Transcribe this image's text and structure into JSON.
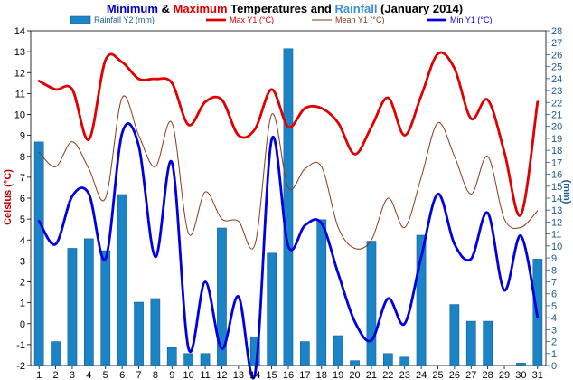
{
  "chart_data": {
    "type": "bar+line",
    "title_parts": [
      {
        "text": "Minimum",
        "color": "#0000c8"
      },
      {
        "text": " & ",
        "color": "#000000"
      },
      {
        "text": "Maximum",
        "color": "#e00000"
      },
      {
        "text": " Temperatures and ",
        "color": "#000000"
      },
      {
        "text": "Rainfall",
        "color": "#3b8fd0"
      },
      {
        "text": " (January 2014)",
        "color": "#000000"
      }
    ],
    "ylabel_left": "Celsius (°C)",
    "ylabel_right": "(mm)",
    "xlim": [
      1,
      31
    ],
    "ylim_left": [
      -2,
      14
    ],
    "ylim_right": [
      0,
      28
    ],
    "x": [
      1,
      2,
      3,
      4,
      5,
      6,
      7,
      8,
      9,
      10,
      11,
      12,
      13,
      14,
      15,
      16,
      17,
      18,
      19,
      20,
      21,
      22,
      23,
      24,
      25,
      26,
      27,
      28,
      29,
      30,
      31
    ],
    "series": [
      {
        "name": "Rainfall Y2 (mm)",
        "axis": "right",
        "kind": "bar",
        "color": "#1a84c7",
        "stroke": "#1a5b8c",
        "values": [
          18.7,
          2,
          9.8,
          10.6,
          9.6,
          14.3,
          5.3,
          5.6,
          1.5,
          1,
          1,
          11.5,
          0,
          2.4,
          9.4,
          26.5,
          2,
          12.2,
          2.5,
          0.4,
          10.4,
          1,
          0.7,
          10.9,
          0,
          5.1,
          3.7,
          3.7,
          0,
          0.2,
          8.9
        ]
      },
      {
        "name": "Max Y1 (°C)",
        "axis": "left",
        "kind": "line",
        "width": 2.8,
        "color": "#e00000",
        "values": [
          11.6,
          11.2,
          11.2,
          8.8,
          12.6,
          12.5,
          11.7,
          11.7,
          11.5,
          9.5,
          10.6,
          10.7,
          9.0,
          9.3,
          11.2,
          9.4,
          10.3,
          10.3,
          9.6,
          8.1,
          9.4,
          10.8,
          9.0,
          10.9,
          12.9,
          12.2,
          9.8,
          10.7,
          8.2,
          5.2,
          10.6
        ]
      },
      {
        "name": "Mean Y1 (°C)",
        "axis": "left",
        "kind": "line",
        "width": 1.0,
        "color": "#8b3a1a",
        "values": [
          8.2,
          7.5,
          8.7,
          7.4,
          6.0,
          10.8,
          9.0,
          7.5,
          9.6,
          4.3,
          6.3,
          5.0,
          4.9,
          3.8,
          10.0,
          6.5,
          7.4,
          7.5,
          4.6,
          3.6,
          4.0,
          6.0,
          4.6,
          7.0,
          9.6,
          8.0,
          6.2,
          8.0,
          5.0,
          4.6,
          5.4
        ]
      },
      {
        "name": "Min Y1 (°C)",
        "axis": "left",
        "kind": "line",
        "width": 2.8,
        "color": "#0000e0",
        "values": [
          4.9,
          3.8,
          6.1,
          6.2,
          3.1,
          9.1,
          8.5,
          3.2,
          7.7,
          -1.2,
          2.0,
          -1.2,
          1.3,
          -2.4,
          8.8,
          3.7,
          4.7,
          4.8,
          2.4,
          0.1,
          -0.8,
          1.2,
          0.0,
          3.2,
          6.2,
          3.8,
          3.1,
          5.3,
          1.6,
          4.2,
          0.3
        ]
      }
    ],
    "yticks_left": [
      "-2",
      "-1",
      "0",
      "1",
      "2",
      "3",
      "4",
      "5",
      "6",
      "7",
      "8",
      "9",
      "10",
      "11",
      "12",
      "13",
      "14"
    ],
    "yticks_right": [
      "0",
      "1",
      "2",
      "3",
      "4",
      "5",
      "6",
      "7",
      "8",
      "9",
      "10",
      "11",
      "12",
      "13",
      "14",
      "15",
      "16",
      "17",
      "18",
      "19",
      "20",
      "21",
      "22",
      "23",
      "24",
      "25",
      "26",
      "27",
      "28"
    ],
    "xticks": [
      "1",
      "2",
      "3",
      "4",
      "5",
      "6",
      "7",
      "8",
      "9",
      "10",
      "11",
      "12",
      "13",
      "14",
      "15",
      "16",
      "17",
      "18",
      "19",
      "20",
      "21",
      "22",
      "23",
      "24",
      "25",
      "26",
      "27",
      "28",
      "29",
      "30",
      "31"
    ],
    "grid": false,
    "legend_position": "top"
  }
}
